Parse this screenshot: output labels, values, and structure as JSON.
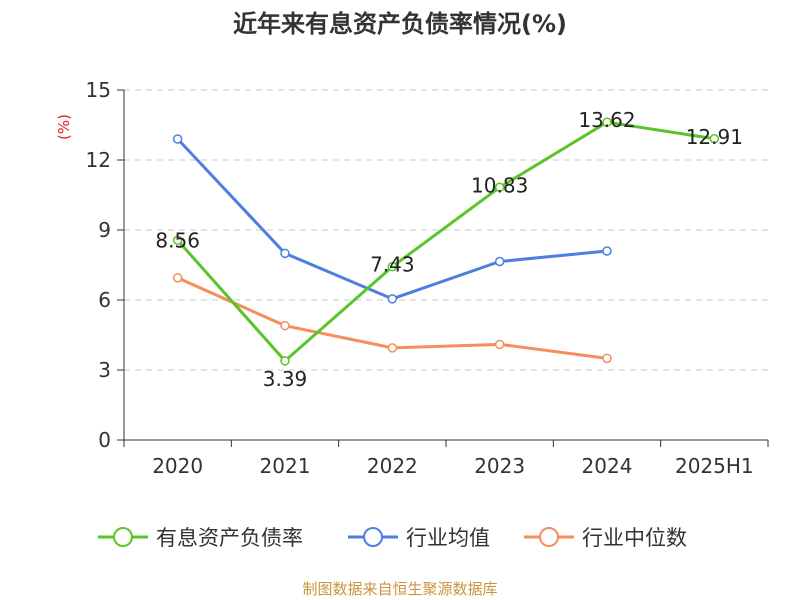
{
  "title": "近年来有息资产负债率情况(%)",
  "footer": "制图数据来自恒生聚源数据库",
  "chart_data": {
    "type": "line",
    "title": "近年来有息资产负债率情况(%)",
    "y_unit": "(%)",
    "categories": [
      "2020",
      "2021",
      "2022",
      "2023",
      "2024",
      "2025H1"
    ],
    "ylim": [
      0,
      15
    ],
    "yticks": [
      0,
      3,
      6,
      9,
      12,
      15
    ],
    "grid": true,
    "legend_position": "bottom",
    "series": [
      {
        "name": "有息资产负债率",
        "color": "#5ac42a",
        "values": [
          8.56,
          3.39,
          7.43,
          10.83,
          13.62,
          12.91
        ],
        "labels": true
      },
      {
        "name": "行业均值",
        "color": "#4e7fe0",
        "values": [
          12.9,
          8.0,
          6.05,
          7.65,
          8.1,
          null
        ],
        "labels": false
      },
      {
        "name": "行业中位数",
        "color": "#f58e5a",
        "values": [
          6.95,
          4.9,
          3.95,
          4.1,
          3.5,
          null
        ],
        "labels": false
      }
    ]
  }
}
